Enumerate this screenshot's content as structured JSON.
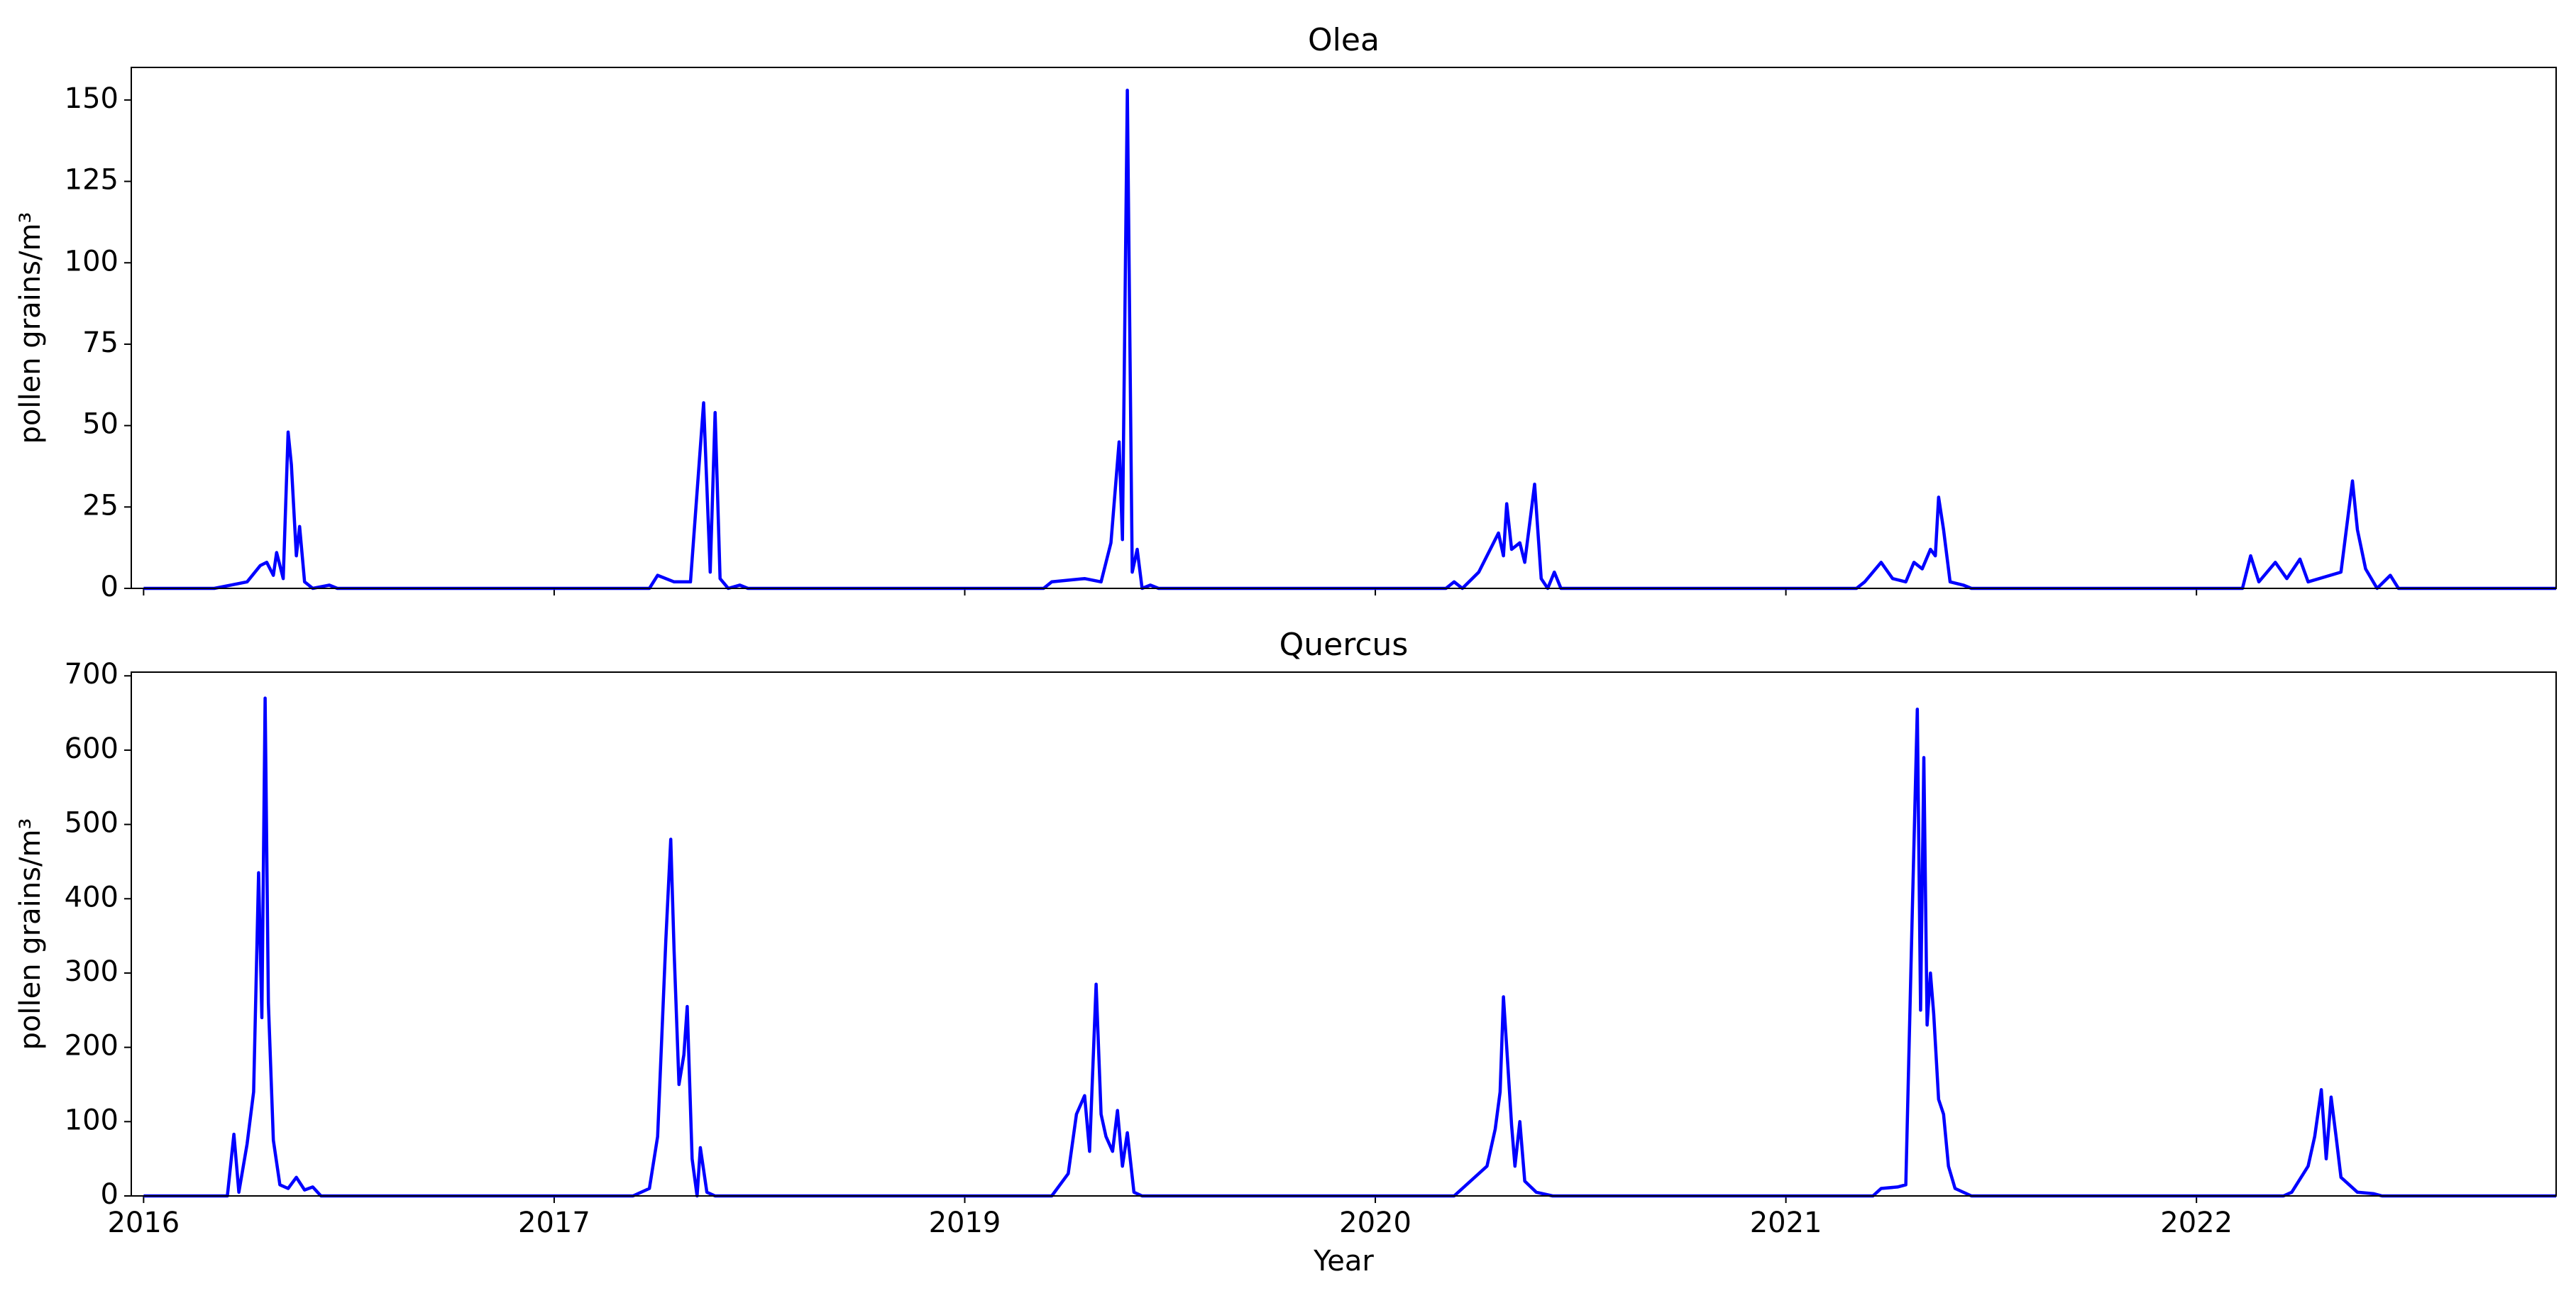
{
  "chart_data": [
    {
      "type": "line",
      "title": "Olea",
      "ylabel": "pollen grains/m³",
      "color": "#0000ff",
      "xlim": [
        -0.03,
        5.876
      ],
      "xticks": [
        0,
        1,
        2,
        3,
        4,
        5
      ],
      "ylim": [
        0,
        160
      ],
      "yticks": [
        0,
        25,
        50,
        75,
        100,
        125,
        150
      ],
      "x": [
        0,
        0.172,
        0.212,
        0.252,
        0.284,
        0.3,
        0.316,
        0.324,
        0.34,
        0.352,
        0.36,
        0.372,
        0.38,
        0.392,
        0.412,
        0.452,
        0.472,
        1.232,
        1.252,
        1.292,
        1.332,
        1.364,
        1.38,
        1.392,
        1.404,
        1.424,
        1.452,
        1.472,
        2.192,
        2.212,
        2.292,
        2.332,
        2.356,
        2.376,
        2.384,
        2.396,
        2.408,
        2.42,
        2.432,
        2.452,
        2.472,
        3.172,
        3.192,
        3.212,
        3.252,
        3.3,
        3.312,
        3.32,
        3.332,
        3.352,
        3.364,
        3.376,
        3.388,
        3.404,
        3.42,
        3.436,
        3.452,
        4.172,
        4.192,
        4.232,
        4.26,
        4.292,
        4.312,
        4.332,
        4.352,
        4.364,
        4.372,
        4.384,
        4.4,
        4.432,
        4.452,
        5.112,
        5.132,
        5.152,
        5.192,
        5.22,
        5.252,
        5.272,
        5.352,
        5.38,
        5.392,
        5.412,
        5.44,
        5.472,
        5.492,
        5.876
      ],
      "values": [
        0,
        0,
        1,
        2,
        7,
        8,
        4,
        11,
        3,
        48,
        38,
        10,
        19,
        2,
        0,
        1,
        0,
        0,
        4,
        2,
        2,
        57,
        5,
        54,
        3,
        0,
        1,
        0,
        0,
        2,
        3,
        2,
        14,
        45,
        15,
        153,
        5,
        12,
        0,
        1,
        0,
        0,
        2,
        0,
        5,
        17,
        10,
        26,
        12,
        14,
        8,
        20,
        32,
        3,
        0,
        5,
        0,
        0,
        2,
        8,
        3,
        2,
        8,
        6,
        12,
        10,
        28,
        18,
        2,
        1,
        0,
        0,
        10,
        2,
        8,
        3,
        9,
        2,
        5,
        33,
        18,
        6,
        0,
        4,
        0,
        0
      ]
    },
    {
      "type": "line",
      "title": "Quercus",
      "ylabel": "pollen grains/m³",
      "xlabel": "Year",
      "color": "#0000ff",
      "xlim": [
        -0.03,
        5.876
      ],
      "xticks": [
        {
          "value": 0,
          "label": "2016"
        },
        {
          "value": 1,
          "label": "2017"
        },
        {
          "value": 2,
          "label": "2019"
        },
        {
          "value": 3,
          "label": "2020"
        },
        {
          "value": 4,
          "label": "2021"
        },
        {
          "value": 5,
          "label": "2022"
        }
      ],
      "ylim": [
        0,
        705
      ],
      "yticks": [
        0,
        100,
        200,
        300,
        400,
        500,
        600,
        700
      ],
      "x": [
        0,
        0.204,
        0.22,
        0.232,
        0.252,
        0.268,
        0.28,
        0.288,
        0.296,
        0.304,
        0.316,
        0.332,
        0.352,
        0.372,
        0.392,
        0.412,
        0.432,
        1.192,
        1.232,
        1.252,
        1.272,
        1.284,
        1.292,
        1.304,
        1.316,
        1.324,
        1.336,
        1.348,
        1.356,
        1.372,
        1.392,
        2.212,
        2.252,
        2.272,
        2.292,
        2.304,
        2.32,
        2.332,
        2.344,
        2.36,
        2.372,
        2.384,
        2.396,
        2.412,
        2.432,
        3.192,
        3.212,
        3.272,
        3.292,
        3.304,
        3.312,
        3.32,
        3.332,
        3.34,
        3.352,
        3.364,
        3.392,
        3.432,
        4.212,
        4.232,
        4.272,
        4.292,
        4.308,
        4.32,
        4.328,
        4.336,
        4.344,
        4.352,
        4.36,
        4.372,
        4.384,
        4.396,
        4.412,
        4.452,
        5.212,
        5.232,
        5.272,
        5.288,
        5.304,
        5.316,
        5.328,
        5.34,
        5.352,
        5.392,
        5.432,
        5.452,
        5.876
      ],
      "values": [
        0,
        0,
        83,
        5,
        70,
        140,
        435,
        240,
        670,
        260,
        75,
        15,
        10,
        25,
        8,
        12,
        0,
        0,
        10,
        80,
        345,
        480,
        330,
        150,
        190,
        255,
        50,
        0,
        65,
        5,
        0,
        0,
        30,
        110,
        135,
        60,
        285,
        110,
        80,
        60,
        115,
        40,
        85,
        5,
        0,
        0,
        10,
        40,
        90,
        140,
        268,
        200,
        95,
        40,
        100,
        20,
        5,
        0,
        0,
        10,
        12,
        15,
        385,
        655,
        250,
        590,
        230,
        300,
        245,
        130,
        110,
        40,
        10,
        0,
        0,
        5,
        40,
        80,
        143,
        50,
        133,
        80,
        25,
        5,
        3,
        0,
        0
      ]
    }
  ]
}
